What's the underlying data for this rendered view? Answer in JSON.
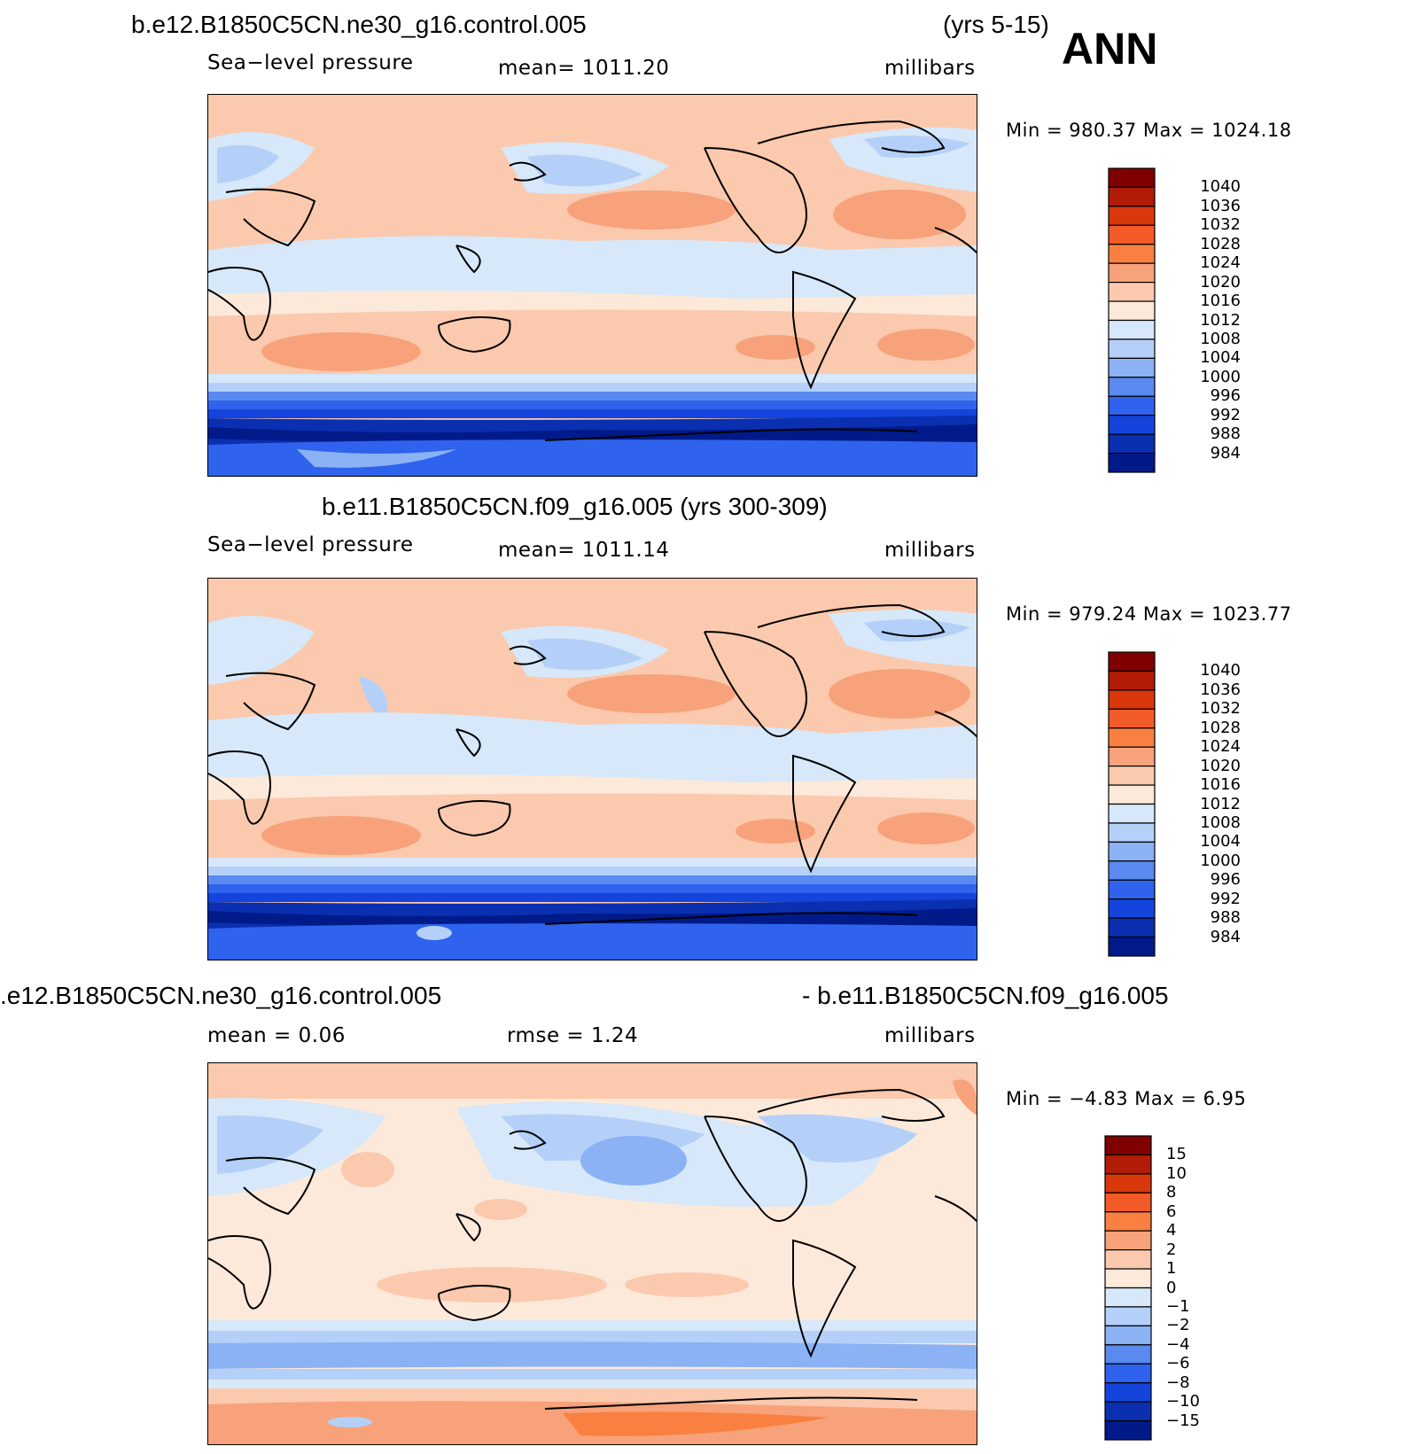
{
  "header": {
    "panel1_title": "b.e12.B1850C5CN.ne30_g16.control.005",
    "panel1_years": "(yrs 5-15)",
    "season": "ANN",
    "panel2_title": "b.e11.B1850C5CN.f09_g16.005 (yrs 300-309)",
    "panel3_title_left": ".e12.B1850C5CN.ne30_g16.control.005",
    "panel3_title_right": "- b.e11.B1850C5CN.f09_g16.005"
  },
  "panels": [
    {
      "variable": "Sea−level pressure",
      "mean": "mean=  1011.20",
      "units": "millibars",
      "minmax": "Min  =  980.37  Max  =  1024.18"
    },
    {
      "variable": "Sea−level pressure",
      "mean": "mean=  1011.14",
      "units": "millibars",
      "minmax": "Min  =  979.24  Max  =  1023.77"
    },
    {
      "mean": "mean =     0.06",
      "rmse": "rmse  =     1.24",
      "units": "millibars",
      "minmax": "Min  =    −4.83  Max  =     6.95"
    }
  ],
  "colorbars": {
    "slp_labels": [
      "1040",
      "1036",
      "1032",
      "1028",
      "1024",
      "1020",
      "1016",
      "1012",
      "1008",
      "1004",
      "1000",
      "996",
      "992",
      "988",
      "984"
    ],
    "diff_labels": [
      "15",
      "10",
      "8",
      "6",
      "4",
      "2",
      "1",
      "0",
      "−1",
      "−2",
      "−4",
      "−6",
      "−8",
      "−10",
      "−15"
    ],
    "colors": [
      "#800000",
      "#b01c05",
      "#d8380c",
      "#f25b27",
      "#f98040",
      "#f7a27a",
      "#fbc9ad",
      "#fde9da",
      "#d6e8f9",
      "#b4d0f8",
      "#8ab2f5",
      "#5a8af0",
      "#2f63ed",
      "#1444db",
      "#0a2fb0",
      "#001a8a"
    ]
  }
}
